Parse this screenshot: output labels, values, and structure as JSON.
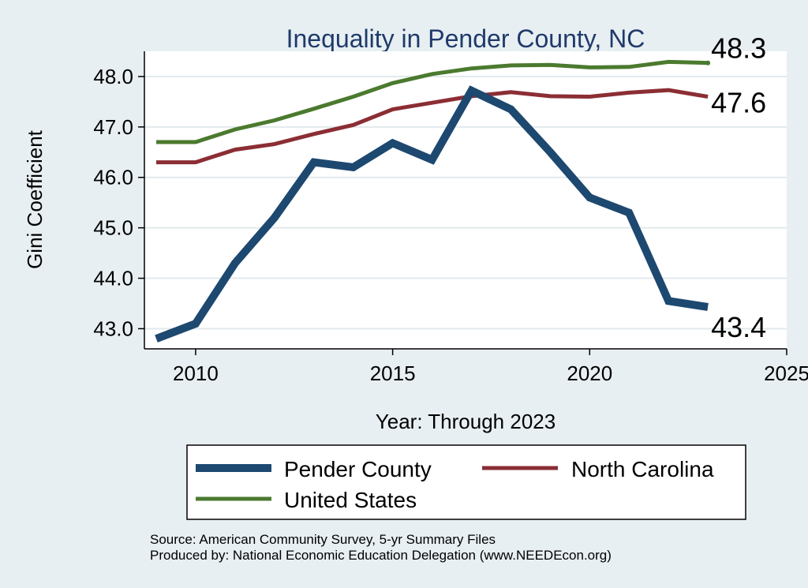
{
  "chart_data": {
    "type": "line",
    "title": "Inequality in Pender County, NC",
    "xlabel": "Year: Through 2023",
    "ylabel": "Gini Coefficient",
    "xlim": [
      2008.7,
      2025
    ],
    "ylim": [
      42.6,
      48.5
    ],
    "xticks": [
      2010,
      2015,
      2020,
      2025
    ],
    "yticks": [
      43.0,
      44.0,
      45.0,
      46.0,
      47.0,
      48.0
    ],
    "ytick_labels": [
      "43.0",
      "44.0",
      "45.0",
      "46.0",
      "47.0",
      "48.0"
    ],
    "x": [
      2009,
      2010,
      2011,
      2012,
      2013,
      2014,
      2015,
      2016,
      2017,
      2018,
      2019,
      2020,
      2021,
      2022,
      2023
    ],
    "series": [
      {
        "name": "Pender County",
        "color": "#1d4870",
        "width": "thick",
        "values": [
          42.8,
          43.1,
          44.3,
          45.2,
          46.3,
          46.2,
          46.68,
          46.35,
          47.72,
          47.35,
          46.5,
          45.6,
          45.3,
          43.55,
          43.43
        ],
        "end_label": "43.4"
      },
      {
        "name": "North Carolina",
        "color": "#8b2e34",
        "width": "medium",
        "values": [
          46.3,
          46.3,
          46.55,
          46.66,
          46.86,
          47.04,
          47.35,
          47.48,
          47.61,
          47.69,
          47.61,
          47.6,
          47.68,
          47.73,
          47.6
        ],
        "end_label": "47.6"
      },
      {
        "name": "United States",
        "color": "#4b7a2f",
        "width": "medium",
        "values": [
          46.7,
          46.7,
          46.95,
          47.13,
          47.36,
          47.6,
          47.87,
          48.05,
          48.16,
          48.22,
          48.23,
          48.18,
          48.19,
          48.29,
          48.27
        ],
        "end_label": "48.3"
      }
    ],
    "legend": {
      "position": "bottom",
      "entries": [
        "Pender County",
        "North Carolina",
        "United States"
      ]
    },
    "source_lines": [
      "Source: American Community Survey, 5-yr Summary Files",
      "Produced by: National Economic Education Delegation (www.NEEDEcon.org)"
    ]
  }
}
